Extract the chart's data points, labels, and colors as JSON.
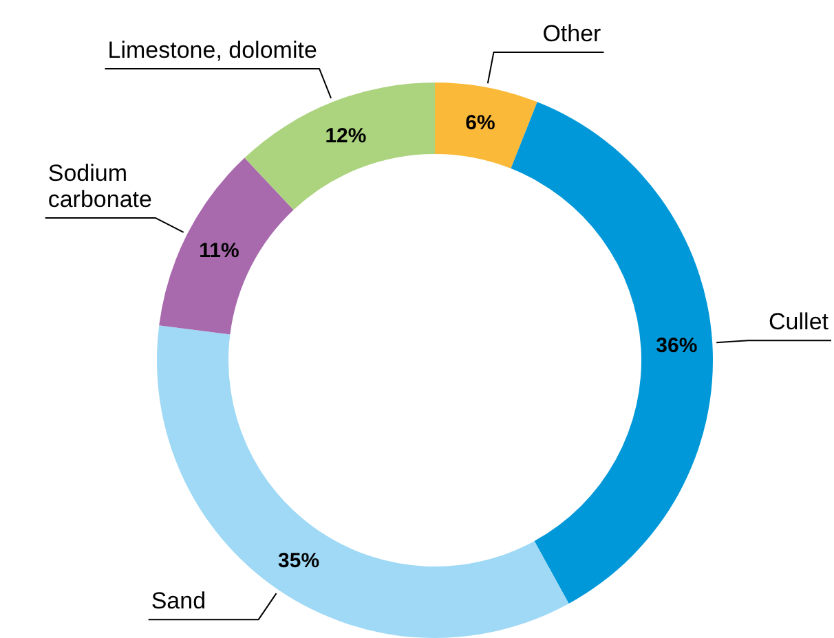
{
  "chart_data": {
    "type": "donut",
    "categories": [
      "Other",
      "Cullet",
      "Sand",
      "Sodium\ncarbonate",
      "Limestone, dolomite"
    ],
    "values": [
      6,
      36,
      35,
      11,
      12
    ],
    "colors": [
      "#fbb93a",
      "#0098d8",
      "#9fd9f5",
      "#a86aad",
      "#acd47f"
    ],
    "value_labels": [
      "6%",
      "36%",
      "35%",
      "11%",
      "12%"
    ]
  }
}
